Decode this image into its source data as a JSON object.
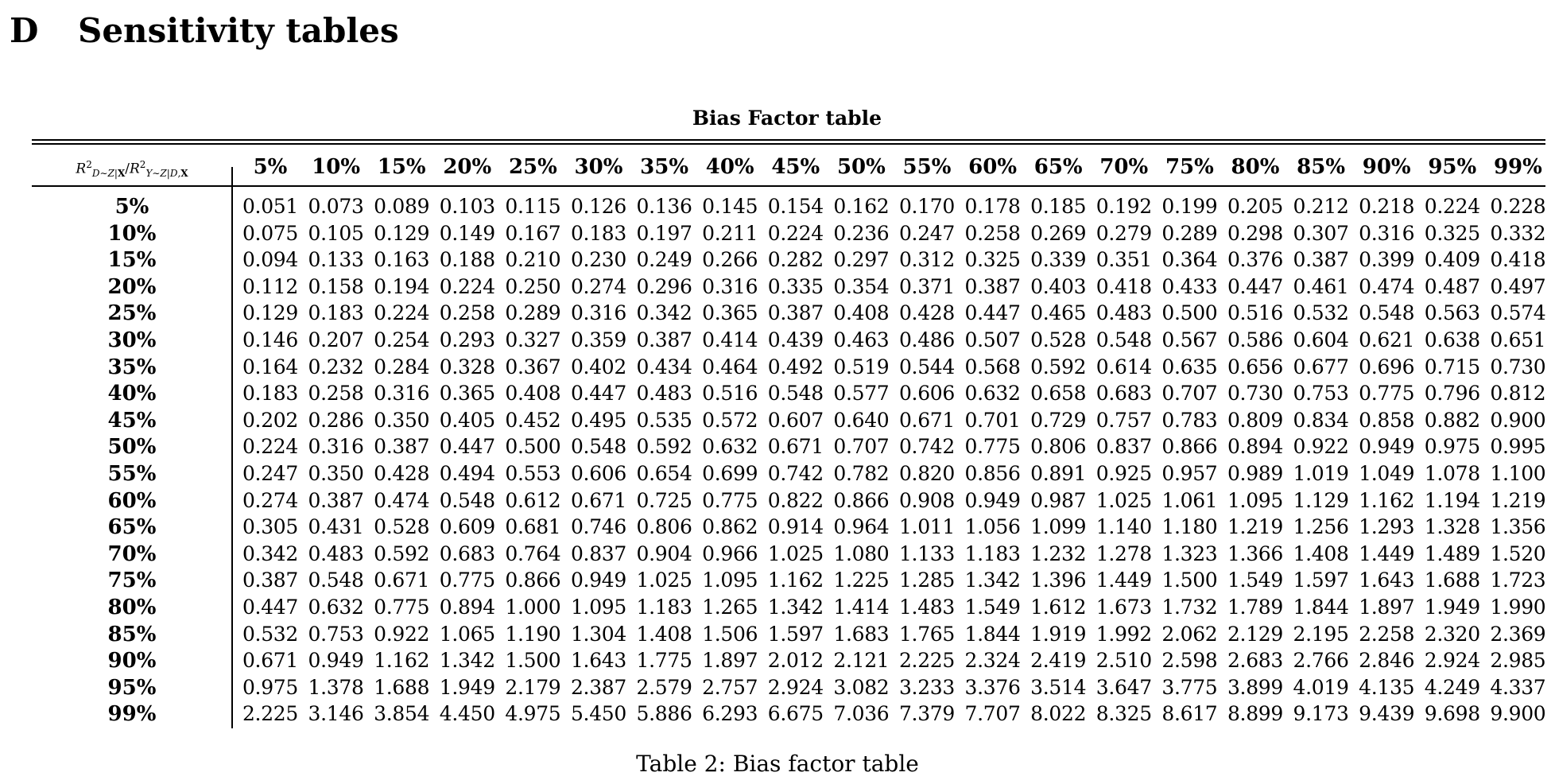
{
  "section": {
    "number": "D",
    "title": "Sensitivity tables"
  },
  "table": {
    "title": "Bias Factor table",
    "corner_header": "R²D∼Z|X / R²Y∼Z|D,X",
    "columns": [
      "5%",
      "10%",
      "15%",
      "20%",
      "25%",
      "30%",
      "35%",
      "40%",
      "45%",
      "50%",
      "55%",
      "60%",
      "65%",
      "70%",
      "75%",
      "80%",
      "85%",
      "90%",
      "95%",
      "99%"
    ],
    "rows": [
      {
        "label": "5%",
        "values": [
          "0.051",
          "0.073",
          "0.089",
          "0.103",
          "0.115",
          "0.126",
          "0.136",
          "0.145",
          "0.154",
          "0.162",
          "0.170",
          "0.178",
          "0.185",
          "0.192",
          "0.199",
          "0.205",
          "0.212",
          "0.218",
          "0.224",
          "0.228"
        ]
      },
      {
        "label": "10%",
        "values": [
          "0.075",
          "0.105",
          "0.129",
          "0.149",
          "0.167",
          "0.183",
          "0.197",
          "0.211",
          "0.224",
          "0.236",
          "0.247",
          "0.258",
          "0.269",
          "0.279",
          "0.289",
          "0.298",
          "0.307",
          "0.316",
          "0.325",
          "0.332"
        ]
      },
      {
        "label": "15%",
        "values": [
          "0.094",
          "0.133",
          "0.163",
          "0.188",
          "0.210",
          "0.230",
          "0.249",
          "0.266",
          "0.282",
          "0.297",
          "0.312",
          "0.325",
          "0.339",
          "0.351",
          "0.364",
          "0.376",
          "0.387",
          "0.399",
          "0.409",
          "0.418"
        ]
      },
      {
        "label": "20%",
        "values": [
          "0.112",
          "0.158",
          "0.194",
          "0.224",
          "0.250",
          "0.274",
          "0.296",
          "0.316",
          "0.335",
          "0.354",
          "0.371",
          "0.387",
          "0.403",
          "0.418",
          "0.433",
          "0.447",
          "0.461",
          "0.474",
          "0.487",
          "0.497"
        ]
      },
      {
        "label": "25%",
        "values": [
          "0.129",
          "0.183",
          "0.224",
          "0.258",
          "0.289",
          "0.316",
          "0.342",
          "0.365",
          "0.387",
          "0.408",
          "0.428",
          "0.447",
          "0.465",
          "0.483",
          "0.500",
          "0.516",
          "0.532",
          "0.548",
          "0.563",
          "0.574"
        ]
      },
      {
        "label": "30%",
        "values": [
          "0.146",
          "0.207",
          "0.254",
          "0.293",
          "0.327",
          "0.359",
          "0.387",
          "0.414",
          "0.439",
          "0.463",
          "0.486",
          "0.507",
          "0.528",
          "0.548",
          "0.567",
          "0.586",
          "0.604",
          "0.621",
          "0.638",
          "0.651"
        ]
      },
      {
        "label": "35%",
        "values": [
          "0.164",
          "0.232",
          "0.284",
          "0.328",
          "0.367",
          "0.402",
          "0.434",
          "0.464",
          "0.492",
          "0.519",
          "0.544",
          "0.568",
          "0.592",
          "0.614",
          "0.635",
          "0.656",
          "0.677",
          "0.696",
          "0.715",
          "0.730"
        ]
      },
      {
        "label": "40%",
        "values": [
          "0.183",
          "0.258",
          "0.316",
          "0.365",
          "0.408",
          "0.447",
          "0.483",
          "0.516",
          "0.548",
          "0.577",
          "0.606",
          "0.632",
          "0.658",
          "0.683",
          "0.707",
          "0.730",
          "0.753",
          "0.775",
          "0.796",
          "0.812"
        ]
      },
      {
        "label": "45%",
        "values": [
          "0.202",
          "0.286",
          "0.350",
          "0.405",
          "0.452",
          "0.495",
          "0.535",
          "0.572",
          "0.607",
          "0.640",
          "0.671",
          "0.701",
          "0.729",
          "0.757",
          "0.783",
          "0.809",
          "0.834",
          "0.858",
          "0.882",
          "0.900"
        ]
      },
      {
        "label": "50%",
        "values": [
          "0.224",
          "0.316",
          "0.387",
          "0.447",
          "0.500",
          "0.548",
          "0.592",
          "0.632",
          "0.671",
          "0.707",
          "0.742",
          "0.775",
          "0.806",
          "0.837",
          "0.866",
          "0.894",
          "0.922",
          "0.949",
          "0.975",
          "0.995"
        ]
      },
      {
        "label": "55%",
        "values": [
          "0.247",
          "0.350",
          "0.428",
          "0.494",
          "0.553",
          "0.606",
          "0.654",
          "0.699",
          "0.742",
          "0.782",
          "0.820",
          "0.856",
          "0.891",
          "0.925",
          "0.957",
          "0.989",
          "1.019",
          "1.049",
          "1.078",
          "1.100"
        ]
      },
      {
        "label": "60%",
        "values": [
          "0.274",
          "0.387",
          "0.474",
          "0.548",
          "0.612",
          "0.671",
          "0.725",
          "0.775",
          "0.822",
          "0.866",
          "0.908",
          "0.949",
          "0.987",
          "1.025",
          "1.061",
          "1.095",
          "1.129",
          "1.162",
          "1.194",
          "1.219"
        ]
      },
      {
        "label": "65%",
        "values": [
          "0.305",
          "0.431",
          "0.528",
          "0.609",
          "0.681",
          "0.746",
          "0.806",
          "0.862",
          "0.914",
          "0.964",
          "1.011",
          "1.056",
          "1.099",
          "1.140",
          "1.180",
          "1.219",
          "1.256",
          "1.293",
          "1.328",
          "1.356"
        ]
      },
      {
        "label": "70%",
        "values": [
          "0.342",
          "0.483",
          "0.592",
          "0.683",
          "0.764",
          "0.837",
          "0.904",
          "0.966",
          "1.025",
          "1.080",
          "1.133",
          "1.183",
          "1.232",
          "1.278",
          "1.323",
          "1.366",
          "1.408",
          "1.449",
          "1.489",
          "1.520"
        ]
      },
      {
        "label": "75%",
        "values": [
          "0.387",
          "0.548",
          "0.671",
          "0.775",
          "0.866",
          "0.949",
          "1.025",
          "1.095",
          "1.162",
          "1.225",
          "1.285",
          "1.342",
          "1.396",
          "1.449",
          "1.500",
          "1.549",
          "1.597",
          "1.643",
          "1.688",
          "1.723"
        ]
      },
      {
        "label": "80%",
        "values": [
          "0.447",
          "0.632",
          "0.775",
          "0.894",
          "1.000",
          "1.095",
          "1.183",
          "1.265",
          "1.342",
          "1.414",
          "1.483",
          "1.549",
          "1.612",
          "1.673",
          "1.732",
          "1.789",
          "1.844",
          "1.897",
          "1.949",
          "1.990"
        ]
      },
      {
        "label": "85%",
        "values": [
          "0.532",
          "0.753",
          "0.922",
          "1.065",
          "1.190",
          "1.304",
          "1.408",
          "1.506",
          "1.597",
          "1.683",
          "1.765",
          "1.844",
          "1.919",
          "1.992",
          "2.062",
          "2.129",
          "2.195",
          "2.258",
          "2.320",
          "2.369"
        ]
      },
      {
        "label": "90%",
        "values": [
          "0.671",
          "0.949",
          "1.162",
          "1.342",
          "1.500",
          "1.643",
          "1.775",
          "1.897",
          "2.012",
          "2.121",
          "2.225",
          "2.324",
          "2.419",
          "2.510",
          "2.598",
          "2.683",
          "2.766",
          "2.846",
          "2.924",
          "2.985"
        ]
      },
      {
        "label": "95%",
        "values": [
          "0.975",
          "1.378",
          "1.688",
          "1.949",
          "2.179",
          "2.387",
          "2.579",
          "2.757",
          "2.924",
          "3.082",
          "3.233",
          "3.376",
          "3.514",
          "3.647",
          "3.775",
          "3.899",
          "4.019",
          "4.135",
          "4.249",
          "4.337"
        ]
      },
      {
        "label": "99%",
        "values": [
          "2.225",
          "3.146",
          "3.854",
          "4.450",
          "4.975",
          "5.450",
          "5.886",
          "6.293",
          "6.675",
          "7.036",
          "7.379",
          "7.707",
          "8.022",
          "8.325",
          "8.617",
          "8.899",
          "9.173",
          "9.439",
          "9.698",
          "9.900"
        ]
      }
    ]
  },
  "caption": "Table 2: Bias factor table"
}
